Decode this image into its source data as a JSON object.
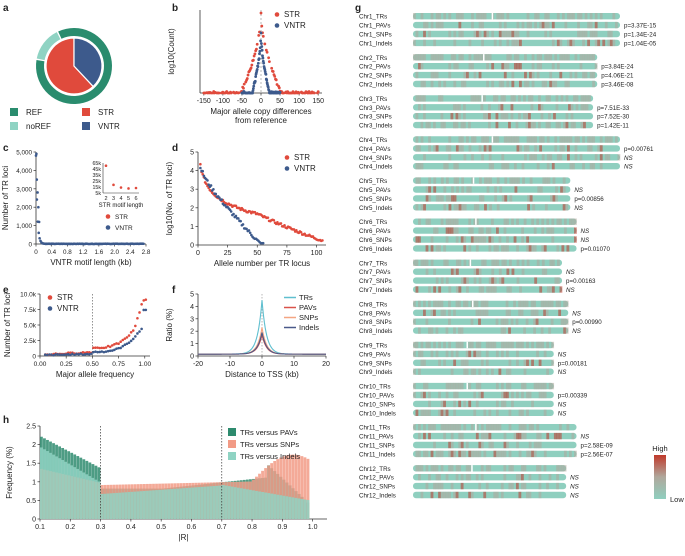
{
  "colors": {
    "ref": "#2a8c6e",
    "noref": "#8fd3c3",
    "str": "#e04a3c",
    "vntr": "#3d5a8c",
    "trs": "#5fbfcf",
    "pavs": "#d9534a",
    "snps": "#f4a582",
    "indels": "#4a5a8a",
    "h_pavs": "#2e8b6e",
    "h_snps": "#f29b86",
    "h_indels": "#8fd3c3",
    "heat_low": "#8fcfbf",
    "heat_mid": "#b0a89c",
    "heat_high": "#c0392b"
  },
  "panel_labels": {
    "a": "a",
    "b": "b",
    "c": "c",
    "d": "d",
    "e": "e",
    "f": "f",
    "g": "g",
    "h": "h"
  },
  "chart_data": [
    {
      "id": "a",
      "type": "pie",
      "title": "",
      "outer": [
        {
          "name": "REF",
          "value": 0.85
        },
        {
          "name": "noREF",
          "value": 0.15
        }
      ],
      "inner": [
        {
          "name": "STR",
          "value": 0.62
        },
        {
          "name": "VNTR",
          "value": 0.38
        }
      ],
      "legend": [
        "REF",
        "STR",
        "noREF",
        "VNTR"
      ]
    },
    {
      "id": "b",
      "type": "scatter",
      "xlabel": "Major allele copy differences",
      "xlabel2": "from reference",
      "ylabel": "log10(Count)",
      "xticks": [
        "-150",
        "-100",
        "-50",
        "0",
        "50",
        "100",
        "150"
      ],
      "xlim": [
        -160,
        160
      ],
      "ylim": [
        0,
        5
      ],
      "series": [
        {
          "name": "STR"
        },
        {
          "name": "VNTR"
        }
      ]
    },
    {
      "id": "c",
      "type": "scatter",
      "xlabel": "VNTR motif length (kb)",
      "ylabel": "Number of TR loci",
      "xticks": [
        "0",
        "0.4",
        "0.8",
        "1.2",
        "1.6",
        "2.0",
        "2.4",
        "2.8"
      ],
      "yticks": [
        "0",
        "1,000",
        "2,000",
        "3,000",
        "4,000",
        "5,000"
      ],
      "xlim": [
        0,
        2.8
      ],
      "ylim": [
        0,
        5000
      ],
      "inset": {
        "xlabel": "STR motif length",
        "xticks": [
          "2",
          "3",
          "4",
          "5",
          "6"
        ],
        "yticks": [
          "5k",
          "15k",
          "25k",
          "35k",
          "45k",
          "65k"
        ],
        "x": [
          2,
          3,
          4,
          5,
          6
        ],
        "y": [
          60,
          18,
          12,
          10,
          11
        ]
      },
      "series": [
        {
          "name": "STR"
        },
        {
          "name": "VNTR"
        }
      ]
    },
    {
      "id": "d",
      "type": "scatter",
      "xlabel": "Allele number per TR locus",
      "ylabel": "log10(No. of TR loci)",
      "xticks": [
        "0",
        "25",
        "50",
        "75",
        "100"
      ],
      "yticks": [
        "0",
        "1",
        "2",
        "3",
        "4",
        "5"
      ],
      "xlim": [
        0,
        108
      ],
      "ylim": [
        0,
        5
      ],
      "series": [
        {
          "name": "STR"
        },
        {
          "name": "VNTR"
        }
      ]
    },
    {
      "id": "e",
      "type": "scatter",
      "xlabel": "Major allele frequency",
      "ylabel": "Number of TR loci",
      "xticks": [
        "0.00",
        "0.25",
        "0.50",
        "0.75",
        "1.00"
      ],
      "yticks": [
        "0",
        "2.5k",
        "5.0k",
        "7.5k",
        "10.0k"
      ],
      "xlim": [
        0,
        1.05
      ],
      "ylim": [
        0,
        10500
      ],
      "vline": 0.5,
      "series": [
        {
          "name": "STR"
        },
        {
          "name": "VNTR"
        }
      ]
    },
    {
      "id": "f",
      "type": "line",
      "xlabel": "Distance to TSS (kb)",
      "ylabel": "Ratio (%)",
      "xticks": [
        "-20",
        "-10",
        "0",
        "10",
        "20"
      ],
      "yticks": [
        "0",
        "1",
        "2",
        "3",
        "4",
        "5"
      ],
      "xlim": [
        -20,
        20
      ],
      "ylim": [
        0,
        5
      ],
      "series": [
        {
          "name": "TRs",
          "peak": 4.5
        },
        {
          "name": "PAVs",
          "peak": 1.7
        },
        {
          "name": "SNPs",
          "peak": 2.3
        },
        {
          "name": "Indels",
          "peak": 1.9
        }
      ]
    },
    {
      "id": "h",
      "type": "bar",
      "xlabel": "|R|",
      "ylabel": "Frequency (%)",
      "xticks": [
        "0.1",
        "0.2",
        "0.3",
        "0.4",
        "0.5",
        "0.6",
        "0.7",
        "0.8",
        "0.9",
        "1.0"
      ],
      "yticks": [
        "0",
        "0.5",
        "1",
        "1.5",
        "2",
        "2.5"
      ],
      "xlim": [
        0.1,
        1.0
      ],
      "ylim": [
        0,
        2.6
      ],
      "vlines": [
        0.3,
        0.7
      ],
      "series": [
        {
          "name": "TRs versus PAVs"
        },
        {
          "name": "TRs versus SNPs"
        },
        {
          "name": "TRs versus Indels"
        }
      ]
    },
    {
      "id": "g",
      "type": "heatmap",
      "legend_high": "High",
      "legend_low": "Low",
      "tracks": [
        {
          "chr": "Chr1",
          "len": 1.0,
          "rows": [
            [
              "Chr1_TRs",
              ""
            ],
            [
              "Chr1_PAVs",
              "p=3.37E-15"
            ],
            [
              "Chr1_SNPs",
              "p=1.34E-24"
            ],
            [
              "Chr1_Indels",
              "p=1.04E-05"
            ]
          ]
        },
        {
          "chr": "Chr2",
          "len": 0.89,
          "rows": [
            [
              "Chr2_TRs",
              ""
            ],
            [
              "Chr2_PAVs",
              "p=3.84E-24"
            ],
            [
              "Chr2_SNPs",
              "p=4.06E-21"
            ],
            [
              "Chr2_Indels",
              "p=3.46E-08"
            ]
          ]
        },
        {
          "chr": "Chr3",
          "len": 0.87,
          "rows": [
            [
              "Chr3_TRs",
              ""
            ],
            [
              "Chr3_PAVs",
              "p=7.51E-33"
            ],
            [
              "Chr3_SNPs",
              "p=7.52E-30"
            ],
            [
              "Chr3_Indels",
              "p=1.42E-11"
            ]
          ]
        },
        {
          "chr": "Chr4",
          "len": 1.0,
          "rows": [
            [
              "Chr4_TRs",
              ""
            ],
            [
              "Chr4_PAVs",
              "p=0.00761"
            ],
            [
              "Chr4_SNPs",
              "NS"
            ],
            [
              "Chr4_Indels",
              "NS"
            ]
          ]
        },
        {
          "chr": "Chr5",
          "len": 0.76,
          "rows": [
            [
              "Chr5_TRs",
              ""
            ],
            [
              "Chr5_PAVs",
              "NS"
            ],
            [
              "Chr5_SNPs",
              "p=0.00856"
            ],
            [
              "Chr5_Indels",
              "NS"
            ]
          ]
        },
        {
          "chr": "Chr6",
          "len": 0.79,
          "rows": [
            [
              "Chr6_TRs",
              ""
            ],
            [
              "Chr6_PAVs",
              "NS"
            ],
            [
              "Chr6_SNPs",
              "NS"
            ],
            [
              "Chr6_Indels",
              "p=0.01070"
            ]
          ]
        },
        {
          "chr": "Chr7",
          "len": 0.72,
          "rows": [
            [
              "Chr7_TRs",
              ""
            ],
            [
              "Chr7_PAVs",
              "NS"
            ],
            [
              "Chr7_SNPs",
              "p=0.00163"
            ],
            [
              "Chr7_Indels",
              "NS"
            ]
          ]
        },
        {
          "chr": "Chr8",
          "len": 0.75,
          "rows": [
            [
              "Chr8_TRs",
              ""
            ],
            [
              "Chr8_PAVs",
              "NS"
            ],
            [
              "Chr8_SNPs",
              "p=0.00990"
            ],
            [
              "Chr8_Indels",
              "NS"
            ]
          ]
        },
        {
          "chr": "Chr9",
          "len": 0.68,
          "rows": [
            [
              "Chr9_TRs",
              ""
            ],
            [
              "Chr9_PAVs",
              "NS"
            ],
            [
              "Chr9_SNPs",
              "p=0.00181"
            ],
            [
              "Chr9_Indels",
              "NS"
            ]
          ]
        },
        {
          "chr": "Chr10",
          "len": 0.68,
          "rows": [
            [
              "Chr10_TRs",
              ""
            ],
            [
              "Chr10_PAVs",
              "p=0.00339"
            ],
            [
              "Chr10_SNPs",
              "NS"
            ],
            [
              "Chr10_Indels",
              "NS"
            ]
          ]
        },
        {
          "chr": "Chr11",
          "len": 0.79,
          "rows": [
            [
              "Chr11_TRs",
              ""
            ],
            [
              "Chr11_PAVs",
              "NS"
            ],
            [
              "Chr11_SNPs",
              "p=2.58E-09"
            ],
            [
              "Chr11_Indels",
              "p=2.56E-07"
            ]
          ]
        },
        {
          "chr": "Chr12",
          "len": 0.74,
          "rows": [
            [
              "Chr12_TRs",
              ""
            ],
            [
              "Chr12_PAVs",
              "NS"
            ],
            [
              "Chr12_SNPs",
              "NS"
            ],
            [
              "Chr12_Indels",
              "NS"
            ]
          ]
        }
      ]
    }
  ]
}
